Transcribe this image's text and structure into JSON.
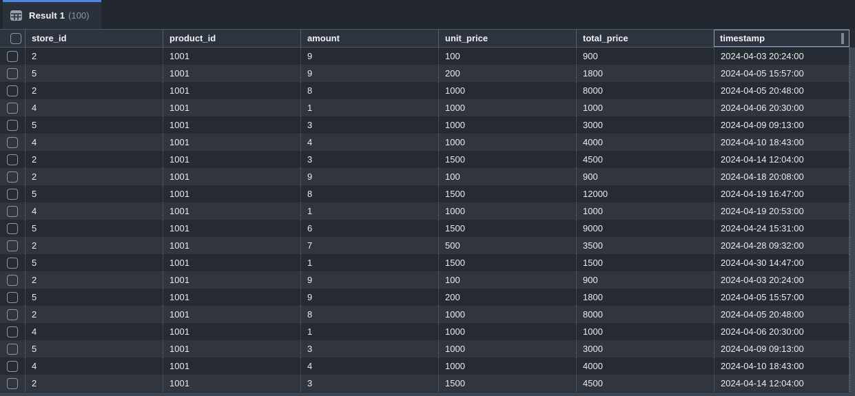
{
  "tab": {
    "icon": "table-grid-icon",
    "title": "Result 1",
    "count": "(100)"
  },
  "table": {
    "columns": [
      "store_id",
      "product_id",
      "amount",
      "unit_price",
      "total_price",
      "timestamp"
    ],
    "selected_column": "timestamp",
    "rows": [
      [
        "2",
        "1001",
        "9",
        "100",
        "900",
        "2024-04-03 20:24:00"
      ],
      [
        "5",
        "1001",
        "9",
        "200",
        "1800",
        "2024-04-05 15:57:00"
      ],
      [
        "2",
        "1001",
        "8",
        "1000",
        "8000",
        "2024-04-05 20:48:00"
      ],
      [
        "4",
        "1001",
        "1",
        "1000",
        "1000",
        "2024-04-06 20:30:00"
      ],
      [
        "5",
        "1001",
        "3",
        "1000",
        "3000",
        "2024-04-09 09:13:00"
      ],
      [
        "4",
        "1001",
        "4",
        "1000",
        "4000",
        "2024-04-10 18:43:00"
      ],
      [
        "2",
        "1001",
        "3",
        "1500",
        "4500",
        "2024-04-14 12:04:00"
      ],
      [
        "2",
        "1001",
        "9",
        "100",
        "900",
        "2024-04-18 20:08:00"
      ],
      [
        "5",
        "1001",
        "8",
        "1500",
        "12000",
        "2024-04-19 16:47:00"
      ],
      [
        "4",
        "1001",
        "1",
        "1000",
        "1000",
        "2024-04-19 20:53:00"
      ],
      [
        "5",
        "1001",
        "6",
        "1500",
        "9000",
        "2024-04-24 15:31:00"
      ],
      [
        "2",
        "1001",
        "7",
        "500",
        "3500",
        "2024-04-28 09:32:00"
      ],
      [
        "5",
        "1001",
        "1",
        "1500",
        "1500",
        "2024-04-30 14:47:00"
      ],
      [
        "2",
        "1001",
        "9",
        "100",
        "900",
        "2024-04-03 20:24:00"
      ],
      [
        "5",
        "1001",
        "9",
        "200",
        "1800",
        "2024-04-05 15:57:00"
      ],
      [
        "2",
        "1001",
        "8",
        "1000",
        "8000",
        "2024-04-05 20:48:00"
      ],
      [
        "4",
        "1001",
        "1",
        "1000",
        "1000",
        "2024-04-06 20:30:00"
      ],
      [
        "5",
        "1001",
        "3",
        "1000",
        "3000",
        "2024-04-09 09:13:00"
      ],
      [
        "4",
        "1001",
        "4",
        "1000",
        "4000",
        "2024-04-10 18:43:00"
      ],
      [
        "2",
        "1001",
        "3",
        "1500",
        "4500",
        "2024-04-14 12:04:00"
      ]
    ]
  },
  "colors": {
    "accent_blue": "#4a87e4",
    "tabbar_bg": "#22262e",
    "tab_bg": "#2b313b",
    "header_bg": "#2d3440",
    "row_odd": "#262b33",
    "row_even": "#30353e"
  }
}
